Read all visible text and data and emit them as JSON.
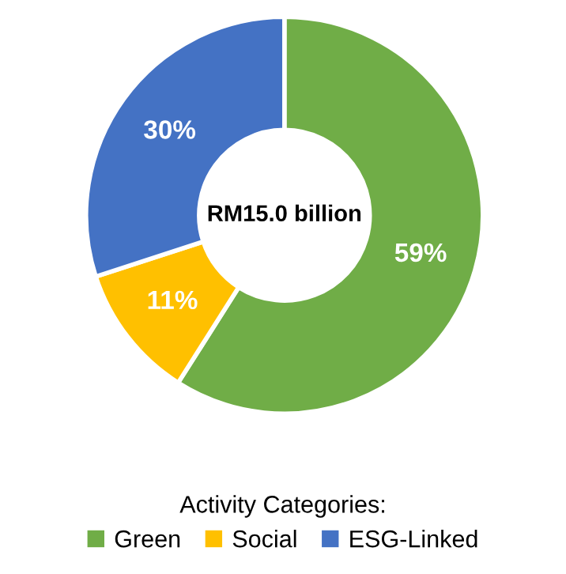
{
  "chart_data": {
    "type": "donut",
    "categories": [
      "Green",
      "Social",
      "ESG-Linked"
    ],
    "values": [
      59,
      11,
      30
    ],
    "colors": [
      "#70ad47",
      "#ffc000",
      "#4472c4"
    ],
    "value_labels": [
      "59%",
      "11%",
      "30%"
    ],
    "annotations": [
      "RM15.0 billion"
    ],
    "legend_title": "Activity Categories:",
    "legend": "bottom"
  }
}
